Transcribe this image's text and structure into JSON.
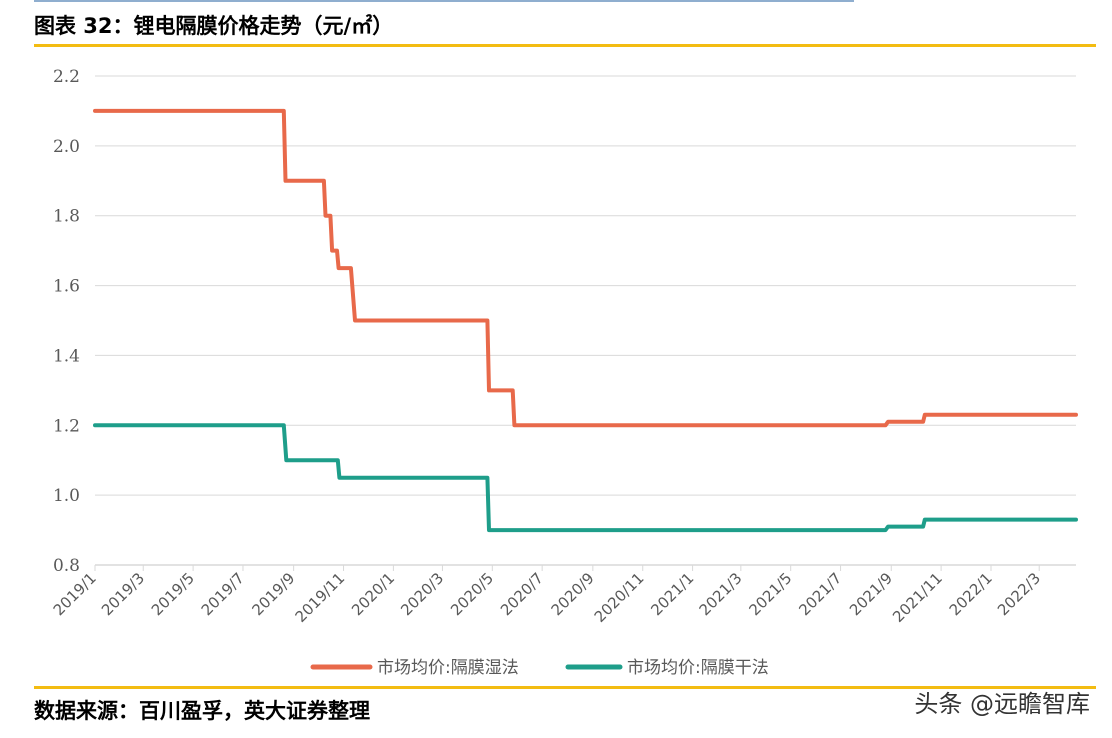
{
  "title": "图表 32：锂电隔膜价格走势（元/㎡）",
  "source": "数据来源：百川盈孚，英大证券整理",
  "watermark": "头条 @远瞻智库",
  "colors": {
    "accent_rule": "#f3bc11",
    "grid": "#d9d9d9",
    "axis_text": "#595959",
    "wet": "#e8694a",
    "dry": "#1e9e8a"
  },
  "chart_data": {
    "type": "line",
    "title": "",
    "xlabel": "",
    "ylabel": "",
    "ylim": [
      0.8,
      2.2
    ],
    "yticks": [
      "2.2",
      "2.0",
      "1.8",
      "1.6",
      "1.4",
      "1.2",
      "1.0",
      "0.8"
    ],
    "xtick_labels": [
      "2019/1",
      "2019/3",
      "2019/5",
      "2019/7",
      "2019/9",
      "2019/11",
      "2020/1",
      "2020/3",
      "2020/5",
      "2020/7",
      "2020/9",
      "2020/11",
      "2021/1",
      "2021/3",
      "2021/5",
      "2021/7",
      "2021/9",
      "2021/11",
      "2022/1",
      "2022/3"
    ],
    "x_range": [
      "2019-01-01",
      "2022-04-15"
    ],
    "grid": true,
    "legend_position": "bottom",
    "series": [
      {
        "name": "市场均价:隔膜湿法",
        "color": "#e8694a",
        "step_points": [
          [
            "2019-01-01",
            2.1
          ],
          [
            "2019-08-20",
            2.1
          ],
          [
            "2019-08-22",
            1.9
          ],
          [
            "2019-10-08",
            1.9
          ],
          [
            "2019-10-10",
            1.8
          ],
          [
            "2019-10-16",
            1.8
          ],
          [
            "2019-10-18",
            1.7
          ],
          [
            "2019-10-24",
            1.7
          ],
          [
            "2019-10-26",
            1.65
          ],
          [
            "2019-11-10",
            1.65
          ],
          [
            "2019-11-15",
            1.5
          ],
          [
            "2020-04-25",
            1.5
          ],
          [
            "2020-04-27",
            1.3
          ],
          [
            "2020-05-26",
            1.3
          ],
          [
            "2020-05-28",
            1.2
          ],
          [
            "2021-08-25",
            1.2
          ],
          [
            "2021-08-28",
            1.21
          ],
          [
            "2021-10-10",
            1.21
          ],
          [
            "2021-10-12",
            1.23
          ],
          [
            "2022-04-15",
            1.23
          ]
        ]
      },
      {
        "name": "市场均价:隔膜干法",
        "color": "#1e9e8a",
        "step_points": [
          [
            "2019-01-01",
            1.2
          ],
          [
            "2019-08-20",
            1.2
          ],
          [
            "2019-08-23",
            1.1
          ],
          [
            "2019-10-25",
            1.1
          ],
          [
            "2019-10-27",
            1.05
          ],
          [
            "2020-04-25",
            1.05
          ],
          [
            "2020-04-27",
            0.9
          ],
          [
            "2021-08-25",
            0.9
          ],
          [
            "2021-08-28",
            0.91
          ],
          [
            "2021-10-10",
            0.91
          ],
          [
            "2021-10-12",
            0.93
          ],
          [
            "2022-04-15",
            0.93
          ]
        ]
      }
    ]
  }
}
